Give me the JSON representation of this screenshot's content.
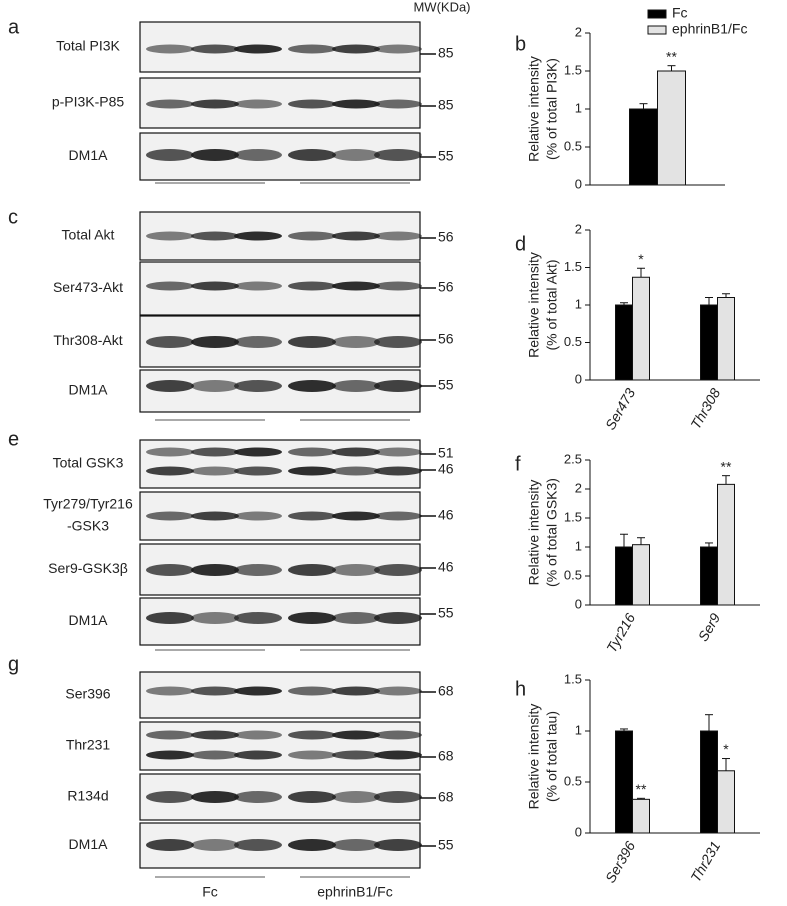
{
  "mw_header": "MW(KDa)",
  "groups": [
    "Fc",
    "ephrinB1/Fc"
  ],
  "blots": [
    {
      "panel": "a",
      "rows": [
        {
          "label": [
            "Total PI3K"
          ],
          "mw": [
            "85"
          ]
        },
        {
          "label": [
            "p-PI3K-P85"
          ],
          "mw": [
            "85"
          ]
        },
        {
          "label": [
            "DM1A"
          ],
          "mw": [
            "55"
          ]
        }
      ]
    },
    {
      "panel": "c",
      "rows": [
        {
          "label": [
            "Total Akt"
          ],
          "mw": [
            "56"
          ]
        },
        {
          "label": [
            "Ser473-Akt"
          ],
          "mw": [
            "56"
          ]
        },
        {
          "label": [
            "Thr308-Akt"
          ],
          "mw": [
            "56"
          ]
        },
        {
          "label": [
            "DM1A"
          ],
          "mw": [
            "55"
          ]
        }
      ]
    },
    {
      "panel": "e",
      "rows": [
        {
          "label": [
            "Total GSK3"
          ],
          "mw": [
            "51",
            "46"
          ]
        },
        {
          "label": [
            "Tyr279/Tyr216",
            "-GSK3"
          ],
          "mw": [
            "46"
          ]
        },
        {
          "label": [
            "Ser9-GSK3β"
          ],
          "mw": [
            "46"
          ]
        },
        {
          "label": [
            "DM1A"
          ],
          "mw": [
            "55"
          ]
        }
      ]
    },
    {
      "panel": "g",
      "rows": [
        {
          "label": [
            "Ser396"
          ],
          "mw": [
            "68"
          ]
        },
        {
          "label": [
            "Thr231"
          ],
          "mw": [
            "68"
          ]
        },
        {
          "label": [
            "R134d"
          ],
          "mw": [
            "68"
          ]
        },
        {
          "label": [
            "DM1A"
          ],
          "mw": [
            "55"
          ]
        }
      ]
    }
  ],
  "chart_data": [
    {
      "type": "bar",
      "panel": "b",
      "ylabel": [
        "Relative intensity",
        "(% of total PI3K)"
      ],
      "categories": [
        null
      ],
      "ylim": [
        0,
        2
      ],
      "yticks": [
        0,
        0.5,
        1,
        1.5,
        2
      ],
      "legend": "top-right",
      "series": [
        {
          "name": "Fc",
          "color": "#000000",
          "values": [
            1.0
          ],
          "errors": [
            0.07
          ],
          "annotations": [
            null
          ]
        },
        {
          "name": "ephrinB1/Fc",
          "color": "#e3e3e3",
          "values": [
            1.5
          ],
          "errors": [
            0.07
          ],
          "annotations": [
            "**"
          ]
        }
      ]
    },
    {
      "type": "bar",
      "panel": "d",
      "ylabel": [
        "Relative intensity",
        "(% of total Akt)"
      ],
      "categories": [
        "Ser473",
        "Thr308"
      ],
      "ylim": [
        0,
        2
      ],
      "yticks": [
        0,
        0.5,
        1,
        1.5,
        2
      ],
      "series": [
        {
          "color": "#000000",
          "values": [
            1.0,
            1.0
          ],
          "errors": [
            0.03,
            0.1
          ],
          "annotations": [
            null,
            null
          ]
        },
        {
          "color": "#e3e3e3",
          "values": [
            1.37,
            1.1
          ],
          "errors": [
            0.12,
            0.05
          ],
          "annotations": [
            "*",
            null
          ]
        }
      ]
    },
    {
      "type": "bar",
      "panel": "f",
      "ylabel": [
        "Relative intensity",
        "(% of total GSK3)"
      ],
      "categories": [
        "Tyr216",
        "Ser9"
      ],
      "ylim": [
        0,
        2.5
      ],
      "yticks": [
        0,
        0.5,
        1,
        1.5,
        2,
        2.5
      ],
      "series": [
        {
          "color": "#000000",
          "values": [
            1.0,
            1.0
          ],
          "errors": [
            0.22,
            0.07
          ],
          "annotations": [
            null,
            null
          ]
        },
        {
          "color": "#e3e3e3",
          "values": [
            1.04,
            2.08
          ],
          "errors": [
            0.12,
            0.15
          ],
          "annotations": [
            null,
            "**"
          ]
        }
      ]
    },
    {
      "type": "bar",
      "panel": "h",
      "ylabel": [
        "Relative intensity",
        "(% of total tau)"
      ],
      "categories": [
        "Ser396",
        "Thr231"
      ],
      "ylim": [
        0,
        1.5
      ],
      "yticks": [
        0,
        0.5,
        1,
        1.5
      ],
      "series": [
        {
          "color": "#000000",
          "values": [
            1.0,
            1.0
          ],
          "errors": [
            0.02,
            0.16
          ],
          "annotations": [
            null,
            null
          ]
        },
        {
          "color": "#e3e3e3",
          "values": [
            0.33,
            0.61
          ],
          "errors": [
            0.01,
            0.12
          ],
          "annotations": [
            "**",
            "*"
          ]
        }
      ]
    }
  ]
}
